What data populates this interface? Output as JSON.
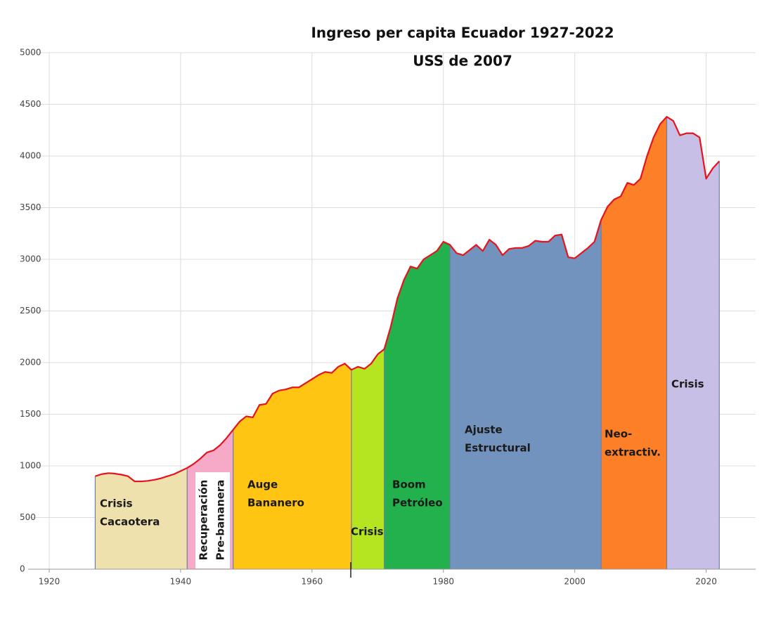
{
  "chart_data": {
    "type": "area",
    "title": "Ingreso per capita Ecuador 1927-2022",
    "subtitle": "USS de 2007",
    "x": [
      1927,
      1928,
      1929,
      1930,
      1931,
      1932,
      1933,
      1934,
      1935,
      1936,
      1937,
      1938,
      1939,
      1940,
      1941,
      1942,
      1943,
      1944,
      1945,
      1946,
      1947,
      1948,
      1949,
      1950,
      1951,
      1952,
      1953,
      1954,
      1955,
      1956,
      1957,
      1958,
      1959,
      1960,
      1961,
      1962,
      1963,
      1964,
      1965,
      1966,
      1967,
      1968,
      1969,
      1970,
      1971,
      1972,
      1973,
      1974,
      1975,
      1976,
      1977,
      1978,
      1979,
      1980,
      1981,
      1982,
      1983,
      1984,
      1985,
      1986,
      1987,
      1988,
      1989,
      1990,
      1991,
      1992,
      1993,
      1994,
      1995,
      1996,
      1997,
      1998,
      1999,
      2000,
      2001,
      2002,
      2003,
      2004,
      2005,
      2006,
      2007,
      2008,
      2009,
      2010,
      2011,
      2012,
      2013,
      2014,
      2015,
      2016,
      2017,
      2018,
      2019,
      2020,
      2021,
      2022
    ],
    "values": [
      900,
      920,
      930,
      925,
      915,
      900,
      850,
      850,
      855,
      865,
      880,
      900,
      920,
      950,
      980,
      1020,
      1070,
      1130,
      1150,
      1200,
      1270,
      1350,
      1430,
      1480,
      1470,
      1590,
      1600,
      1700,
      1730,
      1740,
      1760,
      1760,
      1800,
      1840,
      1880,
      1910,
      1900,
      1960,
      1990,
      1930,
      1960,
      1940,
      1990,
      2080,
      2130,
      2350,
      2620,
      2800,
      2930,
      2910,
      3000,
      3040,
      3080,
      3170,
      3140,
      3060,
      3040,
      3090,
      3140,
      3080,
      3190,
      3140,
      3040,
      3100,
      3110,
      3110,
      3130,
      3180,
      3170,
      3170,
      3230,
      3240,
      3020,
      3010,
      3060,
      3110,
      3170,
      3380,
      3510,
      3580,
      3610,
      3740,
      3720,
      3780,
      4000,
      4180,
      4310,
      4380,
      4340,
      4200,
      4220,
      4220,
      4180,
      3780,
      3880,
      3950
    ],
    "line_color": "#e8121c",
    "periods": [
      {
        "label": [
          "Crisis",
          "Cacaotera"
        ],
        "start": 1927,
        "end": 1941,
        "color": "#efe1ae"
      },
      {
        "label": [
          "Recuperación",
          "Pre-bananera"
        ],
        "start": 1941,
        "end": 1948,
        "color": "#f7a9c8"
      },
      {
        "label": [
          "Auge",
          "Bananero"
        ],
        "start": 1948,
        "end": 1966,
        "color": "#ffc512"
      },
      {
        "label": [
          "Crisis"
        ],
        "start": 1966,
        "end": 1971,
        "color": "#b5e521"
      },
      {
        "label": [
          "Boom",
          "Petróleo"
        ],
        "start": 1971,
        "end": 1981,
        "color": "#22b14c"
      },
      {
        "label": [
          "Ajuste",
          "Estructural"
        ],
        "start": 1981,
        "end": 2004,
        "color": "#7193be"
      },
      {
        "label": [
          "Neo-",
          "extractiv."
        ],
        "start": 2004,
        "end": 2014,
        "color": "#fd7f28"
      },
      {
        "label": [
          "Crisis"
        ],
        "start": 2014,
        "end": 2022,
        "color": "#c7bfe5"
      }
    ],
    "xlim": [
      1920,
      2027
    ],
    "xticks": [
      1920,
      1940,
      1960,
      1980,
      2000,
      2020
    ],
    "ylim": [
      0,
      5000
    ],
    "yticks": [
      0,
      500,
      1000,
      1500,
      2000,
      2500,
      3000,
      3500,
      4000,
      4500,
      5000
    ],
    "grid": true
  }
}
